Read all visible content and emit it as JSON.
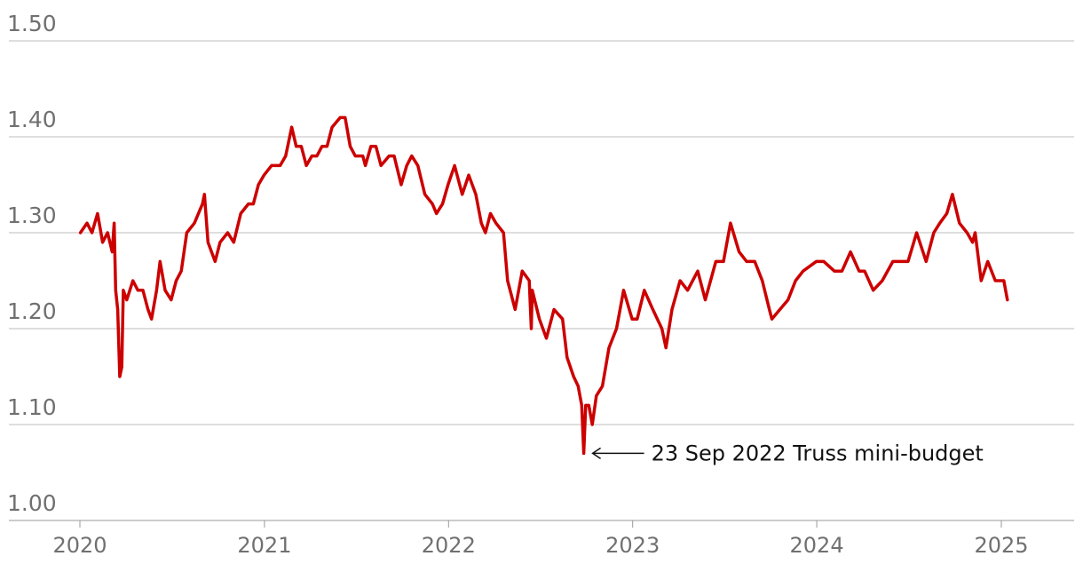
{
  "chart_data": {
    "type": "line",
    "title": "",
    "xlabel": "",
    "ylabel": "",
    "ylim": [
      1.0,
      1.5
    ],
    "xlim": [
      "2020-01-01",
      "2025-06-20"
    ],
    "grid": true,
    "y_ticks": [
      "1.50",
      "1.40",
      "1.30",
      "1.20",
      "1.10",
      "1.00"
    ],
    "x_ticks": [
      "2020",
      "2021",
      "2022",
      "2023",
      "2024",
      "2025"
    ],
    "colors": {
      "series": "#cc0000",
      "grid": "#bdbdbd",
      "tick_text": "#707070",
      "annotation": "#111111"
    },
    "series": [
      {
        "points": [
          [
            "2020-01-02",
            1.3
          ],
          [
            "2020-01-15",
            1.31
          ],
          [
            "2020-01-25",
            1.3
          ],
          [
            "2020-02-05",
            1.32
          ],
          [
            "2020-02-15",
            1.29
          ],
          [
            "2020-02-25",
            1.3
          ],
          [
            "2020-03-05",
            1.28
          ],
          [
            "2020-03-09",
            1.31
          ],
          [
            "2020-03-12",
            1.24
          ],
          [
            "2020-03-16",
            1.22
          ],
          [
            "2020-03-20",
            1.15
          ],
          [
            "2020-03-24",
            1.16
          ],
          [
            "2020-03-27",
            1.24
          ],
          [
            "2020-04-03",
            1.23
          ],
          [
            "2020-04-15",
            1.25
          ],
          [
            "2020-04-25",
            1.24
          ],
          [
            "2020-05-05",
            1.24
          ],
          [
            "2020-05-15",
            1.22
          ],
          [
            "2020-05-22",
            1.21
          ],
          [
            "2020-06-01",
            1.24
          ],
          [
            "2020-06-08",
            1.27
          ],
          [
            "2020-06-18",
            1.24
          ],
          [
            "2020-06-30",
            1.23
          ],
          [
            "2020-07-10",
            1.25
          ],
          [
            "2020-07-20",
            1.26
          ],
          [
            "2020-07-31",
            1.3
          ],
          [
            "2020-08-15",
            1.31
          ],
          [
            "2020-08-31",
            1.33
          ],
          [
            "2020-09-04",
            1.34
          ],
          [
            "2020-09-11",
            1.29
          ],
          [
            "2020-09-25",
            1.27
          ],
          [
            "2020-10-05",
            1.29
          ],
          [
            "2020-10-20",
            1.3
          ],
          [
            "2020-11-01",
            1.29
          ],
          [
            "2020-11-15",
            1.32
          ],
          [
            "2020-11-30",
            1.33
          ],
          [
            "2020-12-10",
            1.33
          ],
          [
            "2020-12-20",
            1.35
          ],
          [
            "2020-12-31",
            1.36
          ],
          [
            "2021-01-15",
            1.37
          ],
          [
            "2021-02-01",
            1.37
          ],
          [
            "2021-02-12",
            1.38
          ],
          [
            "2021-02-24",
            1.41
          ],
          [
            "2021-03-05",
            1.39
          ],
          [
            "2021-03-15",
            1.39
          ],
          [
            "2021-03-25",
            1.37
          ],
          [
            "2021-04-05",
            1.38
          ],
          [
            "2021-04-15",
            1.38
          ],
          [
            "2021-04-25",
            1.39
          ],
          [
            "2021-05-05",
            1.39
          ],
          [
            "2021-05-15",
            1.41
          ],
          [
            "2021-05-31",
            1.42
          ],
          [
            "2021-06-10",
            1.42
          ],
          [
            "2021-06-20",
            1.39
          ],
          [
            "2021-06-30",
            1.38
          ],
          [
            "2021-07-15",
            1.38
          ],
          [
            "2021-07-20",
            1.37
          ],
          [
            "2021-07-31",
            1.39
          ],
          [
            "2021-08-10",
            1.39
          ],
          [
            "2021-08-20",
            1.37
          ],
          [
            "2021-09-05",
            1.38
          ],
          [
            "2021-09-15",
            1.38
          ],
          [
            "2021-09-29",
            1.35
          ],
          [
            "2021-10-10",
            1.37
          ],
          [
            "2021-10-20",
            1.38
          ],
          [
            "2021-11-01",
            1.37
          ],
          [
            "2021-11-15",
            1.34
          ],
          [
            "2021-11-30",
            1.33
          ],
          [
            "2021-12-08",
            1.32
          ],
          [
            "2021-12-20",
            1.33
          ],
          [
            "2021-12-31",
            1.35
          ],
          [
            "2022-01-13",
            1.37
          ],
          [
            "2022-01-28",
            1.34
          ],
          [
            "2022-02-10",
            1.36
          ],
          [
            "2022-02-24",
            1.34
          ],
          [
            "2022-03-07",
            1.31
          ],
          [
            "2022-03-15",
            1.3
          ],
          [
            "2022-03-25",
            1.32
          ],
          [
            "2022-04-05",
            1.31
          ],
          [
            "2022-04-20",
            1.3
          ],
          [
            "2022-04-28",
            1.25
          ],
          [
            "2022-05-13",
            1.22
          ],
          [
            "2022-05-27",
            1.26
          ],
          [
            "2022-06-10",
            1.25
          ],
          [
            "2022-06-14",
            1.2
          ],
          [
            "2022-06-16",
            1.24
          ],
          [
            "2022-06-30",
            1.21
          ],
          [
            "2022-07-14",
            1.19
          ],
          [
            "2022-07-29",
            1.22
          ],
          [
            "2022-08-15",
            1.21
          ],
          [
            "2022-08-24",
            1.17
          ],
          [
            "2022-09-06",
            1.15
          ],
          [
            "2022-09-15",
            1.14
          ],
          [
            "2022-09-22",
            1.12
          ],
          [
            "2022-09-26",
            1.07
          ],
          [
            "2022-09-30",
            1.12
          ],
          [
            "2022-10-06",
            1.12
          ],
          [
            "2022-10-13",
            1.1
          ],
          [
            "2022-10-21",
            1.13
          ],
          [
            "2022-11-02",
            1.14
          ],
          [
            "2022-11-15",
            1.18
          ],
          [
            "2022-11-30",
            1.2
          ],
          [
            "2022-12-14",
            1.24
          ],
          [
            "2022-12-31",
            1.21
          ],
          [
            "2023-01-10",
            1.21
          ],
          [
            "2023-01-24",
            1.24
          ],
          [
            "2023-02-10",
            1.22
          ],
          [
            "2023-02-28",
            1.2
          ],
          [
            "2023-03-08",
            1.18
          ],
          [
            "2023-03-20",
            1.22
          ],
          [
            "2023-04-05",
            1.25
          ],
          [
            "2023-04-20",
            1.24
          ],
          [
            "2023-05-10",
            1.26
          ],
          [
            "2023-05-25",
            1.23
          ],
          [
            "2023-06-15",
            1.27
          ],
          [
            "2023-06-30",
            1.27
          ],
          [
            "2023-07-14",
            1.31
          ],
          [
            "2023-07-31",
            1.28
          ],
          [
            "2023-08-15",
            1.27
          ],
          [
            "2023-08-31",
            1.27
          ],
          [
            "2023-09-15",
            1.25
          ],
          [
            "2023-09-29",
            1.22
          ],
          [
            "2023-10-04",
            1.21
          ],
          [
            "2023-10-20",
            1.22
          ],
          [
            "2023-11-05",
            1.23
          ],
          [
            "2023-11-20",
            1.25
          ],
          [
            "2023-12-05",
            1.26
          ],
          [
            "2023-12-31",
            1.27
          ],
          [
            "2024-01-15",
            1.27
          ],
          [
            "2024-02-05",
            1.26
          ],
          [
            "2024-02-20",
            1.26
          ],
          [
            "2024-03-08",
            1.28
          ],
          [
            "2024-03-25",
            1.26
          ],
          [
            "2024-04-05",
            1.26
          ],
          [
            "2024-04-22",
            1.24
          ],
          [
            "2024-05-10",
            1.25
          ],
          [
            "2024-05-31",
            1.27
          ],
          [
            "2024-06-15",
            1.27
          ],
          [
            "2024-06-30",
            1.27
          ],
          [
            "2024-07-17",
            1.3
          ],
          [
            "2024-08-05",
            1.27
          ],
          [
            "2024-08-20",
            1.3
          ],
          [
            "2024-09-01",
            1.31
          ],
          [
            "2024-09-15",
            1.32
          ],
          [
            "2024-09-26",
            1.34
          ],
          [
            "2024-10-10",
            1.31
          ],
          [
            "2024-10-25",
            1.3
          ],
          [
            "2024-11-05",
            1.29
          ],
          [
            "2024-11-10",
            1.3
          ],
          [
            "2024-11-22",
            1.25
          ],
          [
            "2024-12-05",
            1.27
          ],
          [
            "2024-12-20",
            1.25
          ],
          [
            "2024-12-31",
            1.25
          ],
          [
            "2025-01-06",
            1.25
          ],
          [
            "2025-01-13",
            1.23
          ]
        ]
      }
    ],
    "annotations": [
      {
        "text": "23 Sep 2022 Truss mini-budget",
        "x": "2022-09-26",
        "y": 1.07
      }
    ]
  }
}
